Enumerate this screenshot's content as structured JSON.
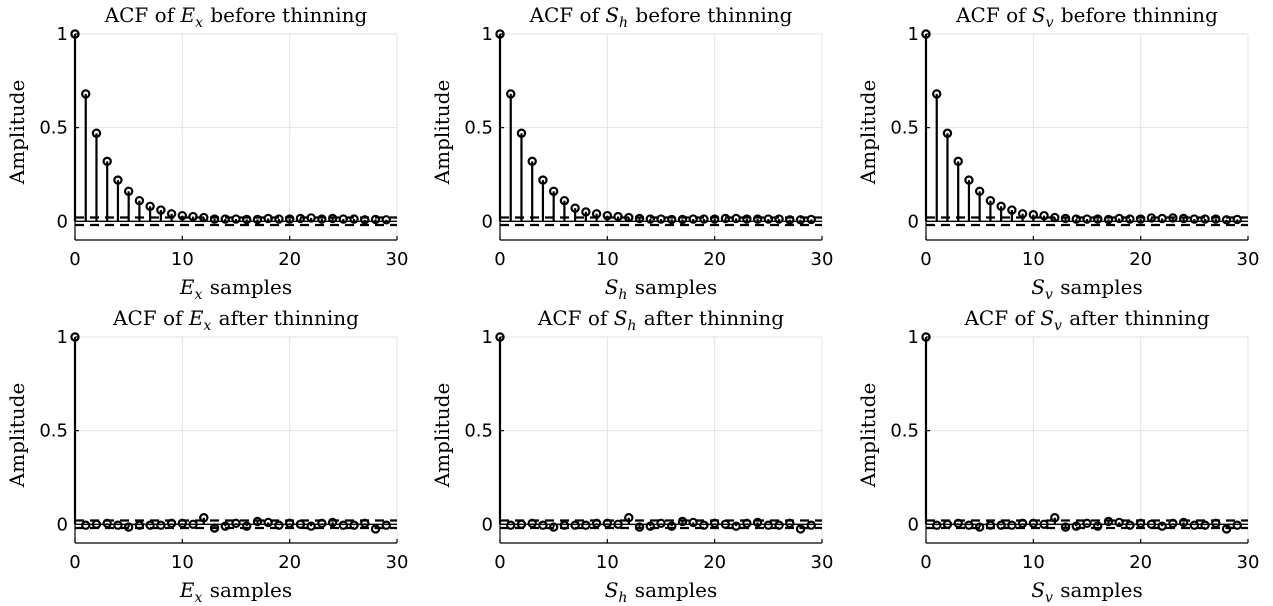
{
  "chart_data": [
    {
      "type": "stem",
      "title_prefix": "ACF of ",
      "title_var": "E",
      "title_sub": "x",
      "title_suffix": " before thinning",
      "xlabel_var": "E",
      "xlabel_sub": "x",
      "xlabel_suffix": " samples",
      "ylabel": "Amplitude",
      "xlim": [
        0,
        30
      ],
      "ylim": [
        -0.1,
        1
      ],
      "xticks": [
        "0",
        "10",
        "20",
        "30"
      ],
      "yticks": [
        "0",
        "0.5",
        "1"
      ],
      "grid": true,
      "confidence_bound": 0.02,
      "lags": [
        0,
        1,
        2,
        3,
        4,
        5,
        6,
        7,
        8,
        9,
        10,
        11,
        12,
        13,
        14,
        15,
        16,
        17,
        18,
        19,
        20,
        21,
        22,
        23,
        24,
        25,
        26,
        27,
        28,
        29
      ],
      "values": [
        1.0,
        0.68,
        0.47,
        0.32,
        0.22,
        0.16,
        0.11,
        0.08,
        0.06,
        0.04,
        0.03,
        0.025,
        0.02,
        0.012,
        0.012,
        0.012,
        0.01,
        0.01,
        0.015,
        0.012,
        0.012,
        0.015,
        0.018,
        0.012,
        0.015,
        0.012,
        0.012,
        0.008,
        0.01,
        0.008
      ]
    },
    {
      "type": "stem",
      "title_prefix": "ACF of ",
      "title_var": "S",
      "title_sub": "h",
      "title_suffix": " before thinning",
      "xlabel_var": "S",
      "xlabel_sub": "h",
      "xlabel_suffix": " samples",
      "ylabel": "Amplitude",
      "xlim": [
        0,
        30
      ],
      "ylim": [
        -0.1,
        1
      ],
      "xticks": [
        "0",
        "10",
        "20",
        "30"
      ],
      "yticks": [
        "0",
        "0.5",
        "1"
      ],
      "grid": true,
      "confidence_bound": 0.02,
      "lags": [
        0,
        1,
        2,
        3,
        4,
        5,
        6,
        7,
        8,
        9,
        10,
        11,
        12,
        13,
        14,
        15,
        16,
        17,
        18,
        19,
        20,
        21,
        22,
        23,
        24,
        25,
        26,
        27,
        28,
        29
      ],
      "values": [
        1.0,
        0.68,
        0.47,
        0.32,
        0.22,
        0.16,
        0.11,
        0.07,
        0.05,
        0.04,
        0.03,
        0.025,
        0.02,
        0.015,
        0.012,
        0.012,
        0.01,
        0.01,
        0.012,
        0.012,
        0.012,
        0.015,
        0.015,
        0.012,
        0.012,
        0.012,
        0.012,
        0.008,
        0.008,
        0.01
      ]
    },
    {
      "type": "stem",
      "title_prefix": "ACF of ",
      "title_var": "S",
      "title_sub": "v",
      "title_suffix": " before thinning",
      "xlabel_var": "S",
      "xlabel_sub": "v",
      "xlabel_suffix": " samples",
      "ylabel": "Amplitude",
      "xlim": [
        0,
        30
      ],
      "ylim": [
        -0.1,
        1
      ],
      "xticks": [
        "0",
        "10",
        "20",
        "30"
      ],
      "yticks": [
        "0",
        "0.5",
        "1"
      ],
      "grid": true,
      "confidence_bound": 0.02,
      "lags": [
        0,
        1,
        2,
        3,
        4,
        5,
        6,
        7,
        8,
        9,
        10,
        11,
        12,
        13,
        14,
        15,
        16,
        17,
        18,
        19,
        20,
        21,
        22,
        23,
        24,
        25,
        26,
        27,
        28,
        29
      ],
      "values": [
        1.0,
        0.68,
        0.47,
        0.32,
        0.22,
        0.16,
        0.11,
        0.08,
        0.06,
        0.04,
        0.035,
        0.03,
        0.02,
        0.015,
        0.012,
        0.012,
        0.012,
        0.01,
        0.015,
        0.012,
        0.012,
        0.018,
        0.015,
        0.018,
        0.015,
        0.012,
        0.012,
        0.012,
        0.008,
        0.01
      ]
    },
    {
      "type": "stem",
      "title_prefix": "ACF of ",
      "title_var": "E",
      "title_sub": "x",
      "title_suffix": " after thinning",
      "xlabel_var": "E",
      "xlabel_sub": "x",
      "xlabel_suffix": " samples",
      "ylabel": "Amplitude",
      "xlim": [
        0,
        30
      ],
      "ylim": [
        -0.1,
        1
      ],
      "xticks": [
        "0",
        "10",
        "20",
        "30"
      ],
      "yticks": [
        "0",
        "0.5",
        "1"
      ],
      "grid": true,
      "confidence_bound": 0.02,
      "lags": [
        0,
        1,
        2,
        3,
        4,
        5,
        6,
        7,
        8,
        9,
        10,
        11,
        12,
        13,
        14,
        15,
        16,
        17,
        18,
        19,
        20,
        21,
        22,
        23,
        24,
        25,
        26,
        27,
        28,
        29
      ],
      "values": [
        1.0,
        -0.005,
        0.0,
        0.005,
        -0.005,
        -0.015,
        -0.005,
        -0.005,
        -0.005,
        0.005,
        0.005,
        0.0,
        0.035,
        -0.02,
        -0.01,
        0.005,
        -0.01,
        0.015,
        0.01,
        -0.005,
        0.005,
        0.0,
        -0.01,
        0.005,
        0.01,
        -0.005,
        -0.005,
        0.005,
        -0.025,
        -0.005
      ]
    },
    {
      "type": "stem",
      "title_prefix": "ACF of ",
      "title_var": "S",
      "title_sub": "h",
      "title_suffix": " after thinning",
      "xlabel_var": "S",
      "xlabel_sub": "h",
      "xlabel_suffix": " samples",
      "ylabel": "Amplitude",
      "xlim": [
        0,
        30
      ],
      "ylim": [
        -0.1,
        1
      ],
      "xticks": [
        "0",
        "10",
        "20",
        "30"
      ],
      "yticks": [
        "0",
        "0.5",
        "1"
      ],
      "grid": true,
      "confidence_bound": 0.02,
      "lags": [
        0,
        1,
        2,
        3,
        4,
        5,
        6,
        7,
        8,
        9,
        10,
        11,
        12,
        13,
        14,
        15,
        16,
        17,
        18,
        19,
        20,
        21,
        22,
        23,
        24,
        25,
        26,
        27,
        28,
        29
      ],
      "values": [
        1.0,
        -0.005,
        0.0,
        0.005,
        -0.005,
        -0.015,
        -0.005,
        -0.005,
        -0.005,
        0.005,
        0.005,
        0.0,
        0.035,
        -0.015,
        -0.01,
        0.005,
        -0.01,
        0.015,
        0.01,
        -0.005,
        0.005,
        0.0,
        -0.01,
        0.005,
        0.01,
        -0.005,
        -0.005,
        0.005,
        -0.025,
        -0.005
      ]
    },
    {
      "type": "stem",
      "title_prefix": "ACF of ",
      "title_var": "S",
      "title_sub": "v",
      "title_suffix": " after thinning",
      "xlabel_var": "S",
      "xlabel_sub": "v",
      "xlabel_suffix": " samples",
      "ylabel": "Amplitude",
      "xlim": [
        0,
        30
      ],
      "ylim": [
        -0.1,
        1
      ],
      "xticks": [
        "0",
        "10",
        "20",
        "30"
      ],
      "yticks": [
        "0",
        "0.5",
        "1"
      ],
      "grid": true,
      "confidence_bound": 0.02,
      "lags": [
        0,
        1,
        2,
        3,
        4,
        5,
        6,
        7,
        8,
        9,
        10,
        11,
        12,
        13,
        14,
        15,
        16,
        17,
        18,
        19,
        20,
        21,
        22,
        23,
        24,
        25,
        26,
        27,
        28,
        29
      ],
      "values": [
        1.0,
        -0.005,
        0.0,
        0.005,
        -0.005,
        -0.015,
        -0.005,
        -0.005,
        -0.005,
        0.005,
        0.005,
        0.0,
        0.035,
        -0.015,
        -0.01,
        0.005,
        -0.01,
        0.015,
        0.01,
        -0.005,
        0.005,
        0.0,
        -0.01,
        0.005,
        0.01,
        -0.005,
        -0.005,
        0.005,
        -0.025,
        -0.005
      ]
    }
  ]
}
